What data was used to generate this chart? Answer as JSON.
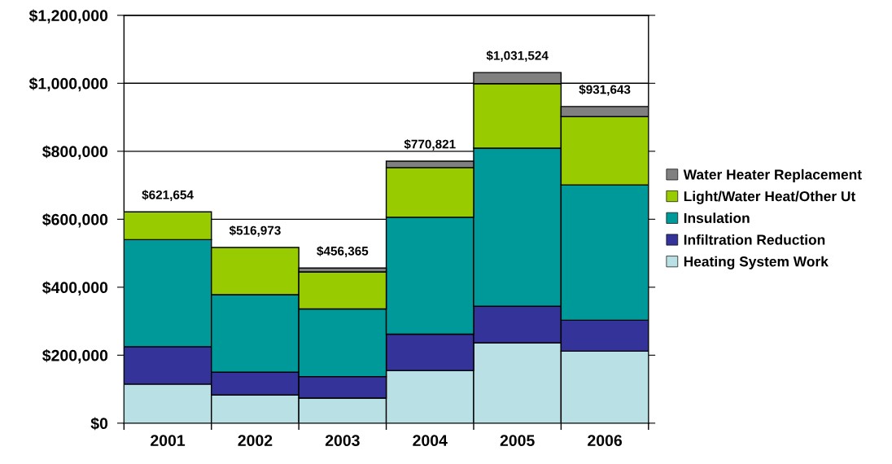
{
  "chart_data": {
    "type": "bar",
    "stacked": true,
    "categories": [
      "2001",
      "2002",
      "2003",
      "2004",
      "2005",
      "2006"
    ],
    "series": [
      {
        "name": "Heating System Work",
        "color": "#b9e0e4",
        "values": [
          115000,
          83000,
          74000,
          155000,
          236000,
          212000
        ]
      },
      {
        "name": "Infiltration Reduction",
        "color": "#333399",
        "values": [
          110000,
          67000,
          63000,
          107000,
          108000,
          91000
        ]
      },
      {
        "name": "Insulation",
        "color": "#009999",
        "values": [
          315000,
          228000,
          199000,
          344000,
          465000,
          398000
        ]
      },
      {
        "name": "Light/Water Heat/Other Ut",
        "color": "#99cc00",
        "values": [
          81654,
          138973,
          109000,
          146000,
          190000,
          201000
        ]
      },
      {
        "name": "Water Heater Replacement",
        "color": "#808080",
        "values": [
          null,
          null,
          11365,
          18821,
          32524,
          29643
        ]
      }
    ],
    "totals": [
      "$621,654",
      "$516,973",
      "$456,365",
      "$770,821",
      "$1,031,524",
      "$931,643"
    ],
    "ylim": [
      0,
      1200000
    ],
    "yticks": [
      {
        "value": 0,
        "label": "$0"
      },
      {
        "value": 200000,
        "label": "$200,000"
      },
      {
        "value": 400000,
        "label": "$400,000"
      },
      {
        "value": 600000,
        "label": "$600,000"
      },
      {
        "value": 800000,
        "label": "$800,000"
      },
      {
        "value": 1000000,
        "label": "$1,000,000"
      },
      {
        "value": 1200000,
        "label": "$1,200,000"
      }
    ],
    "grid": "y",
    "legend": "right"
  }
}
